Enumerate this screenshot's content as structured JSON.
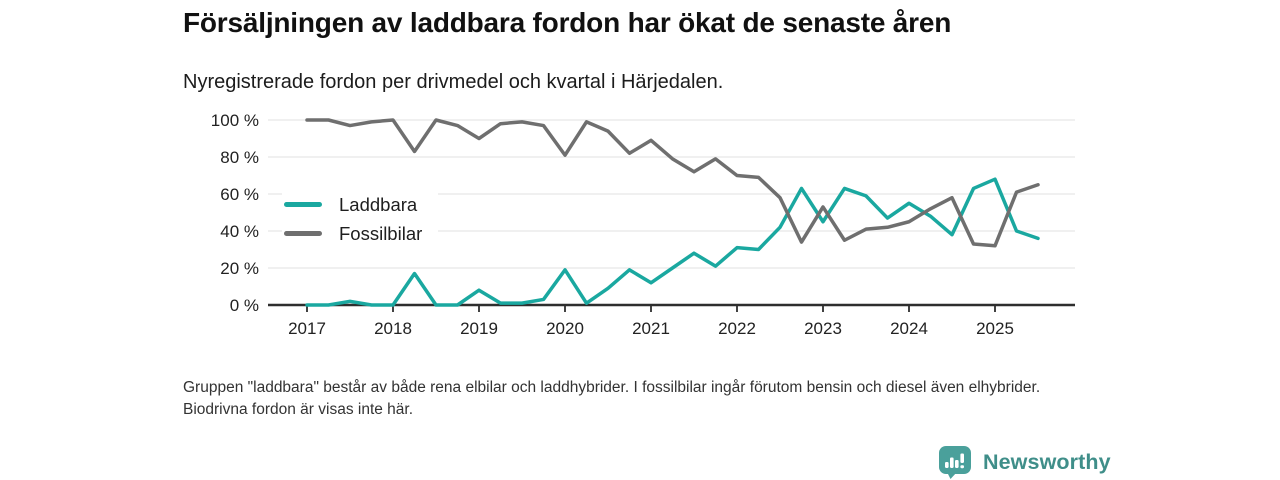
{
  "header": {
    "title": "Försäljningen av laddbara fordon har ökat de senaste åren",
    "subtitle": "Nyregistrerade fordon per drivmedel och kvartal i Härjedalen."
  },
  "chart_data": {
    "type": "line",
    "x_unit": "quarter",
    "x_start": "2017 Q1",
    "x_end": "2025 Q3",
    "x_tick_labels": [
      "2017",
      "2018",
      "2019",
      "2020",
      "2021",
      "2022",
      "2023",
      "2024",
      "2025"
    ],
    "y_tick_labels": [
      "0 %",
      "20 %",
      "40 %",
      "60 %",
      "80 %",
      "100 %"
    ],
    "y_tick_step": 20,
    "ylim": [
      0,
      100
    ],
    "grid": true,
    "legend_position": "inside-top-left",
    "axis_color": "#2e2e2e",
    "gridline_color": "#e7e7e7",
    "series": [
      {
        "name": "Laddbara",
        "color": "#1aa8a0",
        "values": [
          0,
          0,
          2,
          0,
          0,
          17,
          0,
          0,
          8,
          1,
          1,
          3,
          19,
          1,
          9,
          19,
          12,
          20,
          28,
          21,
          31,
          30,
          42,
          63,
          45,
          63,
          59,
          47,
          55,
          48,
          38,
          63,
          68,
          40,
          36
        ]
      },
      {
        "name": "Fossilbilar",
        "color": "#6f6f6f",
        "values": [
          100,
          100,
          97,
          99,
          100,
          83,
          100,
          97,
          90,
          98,
          99,
          97,
          81,
          99,
          94,
          82,
          89,
          79,
          72,
          79,
          70,
          69,
          58,
          34,
          53,
          35,
          41,
          42,
          45,
          52,
          58,
          33,
          32,
          61,
          65
        ]
      }
    ]
  },
  "footnote": "Gruppen \"laddbara\" består av både rena elbilar och laddhybrider. I fossilbilar ingår förutom bensin och diesel även elhybrider. Biodrivna fordon är visas inte här.",
  "brand": {
    "name": "Newsworthy",
    "text_color": "#3f8e89",
    "icon_color": "#4aa09b",
    "icon": "bar-chart-speech-bubble-icon"
  }
}
